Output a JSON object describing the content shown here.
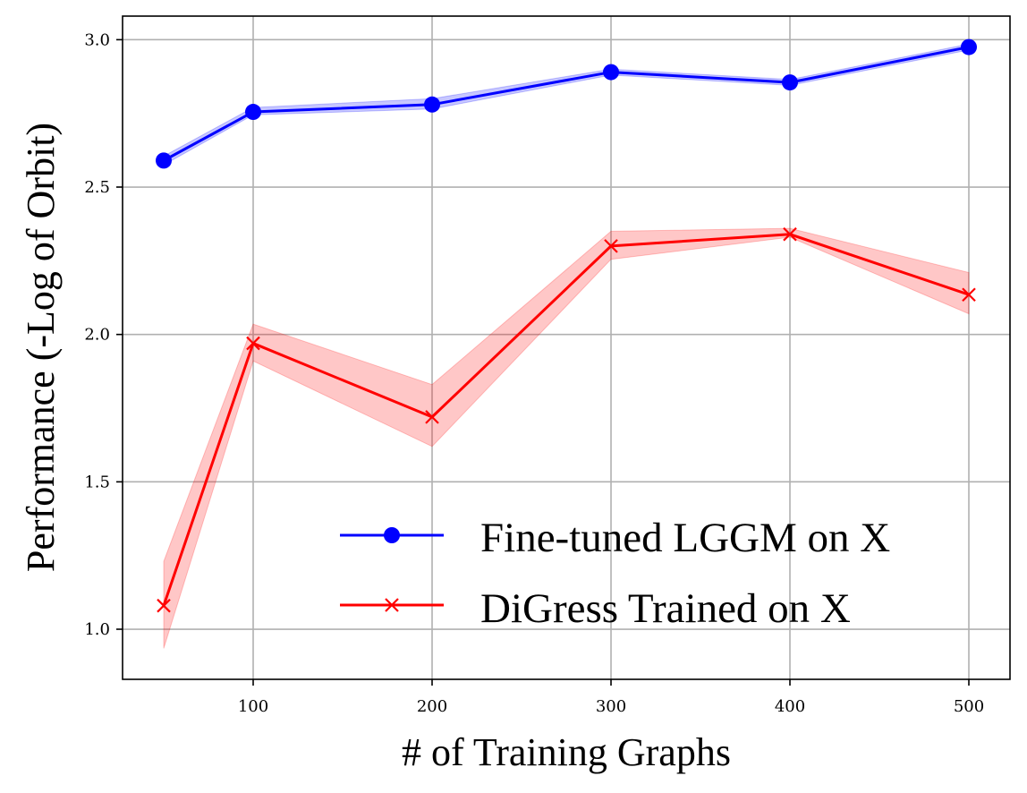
{
  "chart_data": {
    "type": "line",
    "title": "",
    "xlabel": "# of Training Graphs",
    "ylabel": "Performance (-Log of Orbit)",
    "xlim": [
      27,
      523
    ],
    "ylim": [
      0.83,
      3.08
    ],
    "xticks": [
      100,
      200,
      300,
      400,
      500
    ],
    "xtick_labels": [
      "100",
      "200",
      "300",
      "400",
      "500"
    ],
    "yticks": [
      1.0,
      1.5,
      2.0,
      2.5,
      3.0
    ],
    "ytick_labels": [
      "1.0",
      "1.5",
      "2.0",
      "2.5",
      "3.0"
    ],
    "grid": true,
    "legend_position": "lower-right",
    "x": [
      50,
      100,
      200,
      300,
      400,
      500
    ],
    "series": [
      {
        "name": "Fine-tuned LGGM on X",
        "color": "#0000ff",
        "marker": "circle",
        "values": [
          2.59,
          2.755,
          2.78,
          2.89,
          2.855,
          2.975
        ],
        "band_low": [
          2.575,
          2.745,
          2.765,
          2.88,
          2.845,
          2.965
        ],
        "band_high": [
          2.605,
          2.77,
          2.8,
          2.9,
          2.865,
          2.985
        ]
      },
      {
        "name": "DiGress Trained on X",
        "color": "#ff0000",
        "marker": "x",
        "values": [
          1.08,
          1.97,
          1.72,
          2.3,
          2.34,
          2.135
        ],
        "band_low": [
          0.935,
          1.91,
          1.62,
          2.255,
          2.33,
          2.07
        ],
        "band_high": [
          1.23,
          2.035,
          1.83,
          2.35,
          2.36,
          2.21
        ]
      }
    ]
  }
}
